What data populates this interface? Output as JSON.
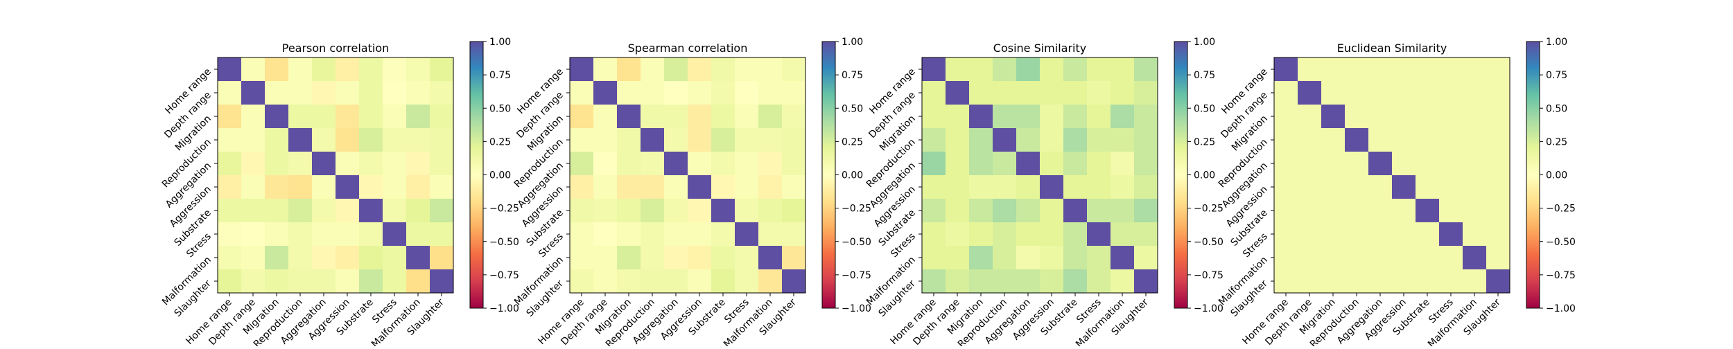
{
  "labels": [
    "Home range",
    "Depth range",
    "Migration",
    "Reproduction",
    "Aggregation",
    "Aggression",
    "Substrate",
    "Stress",
    "Malformation",
    "Slaughter"
  ],
  "colorbar": {
    "ticks": [
      -1.0,
      -0.75,
      -0.5,
      -0.25,
      0.0,
      0.25,
      0.5,
      0.75,
      1.0
    ],
    "tick_labels": [
      "−1.00",
      "−0.75",
      "−0.50",
      "−0.25",
      "0.00",
      "0.25",
      "0.50",
      "0.75",
      "1.00"
    ],
    "colormap": "Spectral",
    "range": [
      -1,
      1
    ]
  },
  "chart_data": [
    {
      "type": "heatmap",
      "title": "Pearson correlation",
      "values": [
        [
          1.0,
          0.05,
          -0.18,
          0.05,
          0.18,
          -0.1,
          0.15,
          0.02,
          0.08,
          0.2
        ],
        [
          0.05,
          1.0,
          0.05,
          0.05,
          -0.05,
          0.05,
          0.15,
          0.0,
          0.05,
          0.1
        ],
        [
          -0.18,
          0.05,
          1.0,
          0.15,
          0.15,
          -0.15,
          0.15,
          0.05,
          0.3,
          0.15
        ],
        [
          0.05,
          0.05,
          0.15,
          1.0,
          0.1,
          -0.18,
          0.25,
          0.1,
          0.1,
          0.12
        ],
        [
          0.18,
          -0.05,
          0.15,
          0.1,
          1.0,
          0.05,
          0.1,
          0.05,
          -0.05,
          0.12
        ],
        [
          -0.1,
          0.05,
          -0.15,
          -0.18,
          0.05,
          1.0,
          -0.05,
          0.05,
          -0.1,
          0.05
        ],
        [
          0.15,
          0.15,
          0.15,
          0.25,
          0.1,
          -0.05,
          1.0,
          0.1,
          0.2,
          0.3
        ],
        [
          0.02,
          0.0,
          0.05,
          0.1,
          0.05,
          0.05,
          0.1,
          1.0,
          0.15,
          0.15
        ],
        [
          0.08,
          0.05,
          0.3,
          0.1,
          -0.05,
          -0.1,
          0.2,
          0.15,
          1.0,
          -0.2
        ],
        [
          0.2,
          0.1,
          0.15,
          0.12,
          0.12,
          0.05,
          0.3,
          0.15,
          -0.2,
          1.0
        ]
      ]
    },
    {
      "type": "heatmap",
      "title": "Spearman correlation",
      "values": [
        [
          1.0,
          0.05,
          -0.18,
          0.05,
          0.25,
          -0.1,
          0.12,
          0.05,
          0.05,
          0.1
        ],
        [
          0.05,
          1.0,
          0.05,
          0.05,
          0.0,
          0.05,
          0.1,
          0.0,
          0.05,
          0.05
        ],
        [
          -0.18,
          0.05,
          1.0,
          0.12,
          0.12,
          -0.12,
          0.15,
          0.05,
          0.25,
          0.1
        ],
        [
          0.05,
          0.05,
          0.12,
          1.0,
          0.1,
          -0.12,
          0.25,
          0.1,
          0.1,
          0.12
        ],
        [
          0.25,
          0.0,
          0.12,
          0.1,
          1.0,
          0.05,
          0.1,
          0.05,
          -0.05,
          0.12
        ],
        [
          -0.1,
          0.05,
          -0.12,
          -0.12,
          0.05,
          1.0,
          -0.05,
          0.05,
          -0.08,
          0.05
        ],
        [
          0.12,
          0.1,
          0.15,
          0.25,
          0.1,
          -0.05,
          1.0,
          0.1,
          0.15,
          0.2
        ],
        [
          0.05,
          0.0,
          0.05,
          0.1,
          0.05,
          0.05,
          0.1,
          1.0,
          0.1,
          0.1
        ],
        [
          0.05,
          0.05,
          0.25,
          0.1,
          -0.05,
          -0.08,
          0.15,
          0.1,
          1.0,
          -0.15
        ],
        [
          0.1,
          0.05,
          0.1,
          0.12,
          0.12,
          0.05,
          0.2,
          0.1,
          -0.15,
          1.0
        ]
      ]
    },
    {
      "type": "heatmap",
      "title": "Cosine Similarity",
      "values": [
        [
          1.0,
          0.2,
          0.2,
          0.3,
          0.45,
          0.2,
          0.3,
          0.2,
          0.2,
          0.35
        ],
        [
          0.2,
          1.0,
          0.2,
          0.2,
          0.2,
          0.2,
          0.2,
          0.15,
          0.2,
          0.25
        ],
        [
          0.2,
          0.2,
          1.0,
          0.35,
          0.35,
          0.15,
          0.3,
          0.2,
          0.4,
          0.3
        ],
        [
          0.3,
          0.2,
          0.35,
          1.0,
          0.3,
          0.15,
          0.4,
          0.25,
          0.25,
          0.3
        ],
        [
          0.45,
          0.2,
          0.35,
          0.3,
          1.0,
          0.2,
          0.3,
          0.2,
          0.1,
          0.3
        ],
        [
          0.2,
          0.2,
          0.15,
          0.15,
          0.2,
          1.0,
          0.2,
          0.2,
          0.15,
          0.25
        ],
        [
          0.3,
          0.2,
          0.3,
          0.4,
          0.3,
          0.2,
          1.0,
          0.3,
          0.3,
          0.4
        ],
        [
          0.2,
          0.15,
          0.2,
          0.25,
          0.2,
          0.2,
          0.3,
          1.0,
          0.25,
          0.25
        ],
        [
          0.2,
          0.2,
          0.4,
          0.25,
          0.1,
          0.15,
          0.3,
          0.25,
          1.0,
          0.15
        ],
        [
          0.35,
          0.25,
          0.3,
          0.3,
          0.3,
          0.25,
          0.4,
          0.25,
          0.15,
          1.0
        ]
      ]
    },
    {
      "type": "heatmap",
      "title": "Euclidean Similarity",
      "values": [
        [
          1.0,
          0.1,
          0.1,
          0.1,
          0.1,
          0.1,
          0.1,
          0.1,
          0.1,
          0.1
        ],
        [
          0.1,
          1.0,
          0.1,
          0.1,
          0.1,
          0.1,
          0.1,
          0.1,
          0.1,
          0.1
        ],
        [
          0.1,
          0.1,
          1.0,
          0.1,
          0.1,
          0.1,
          0.1,
          0.1,
          0.1,
          0.1
        ],
        [
          0.1,
          0.1,
          0.1,
          1.0,
          0.1,
          0.1,
          0.1,
          0.1,
          0.1,
          0.1
        ],
        [
          0.1,
          0.1,
          0.1,
          0.1,
          1.0,
          0.1,
          0.1,
          0.1,
          0.1,
          0.1
        ],
        [
          0.1,
          0.1,
          0.1,
          0.1,
          0.1,
          1.0,
          0.1,
          0.1,
          0.1,
          0.1
        ],
        [
          0.1,
          0.1,
          0.1,
          0.1,
          0.1,
          0.1,
          1.0,
          0.1,
          0.1,
          0.1
        ],
        [
          0.1,
          0.1,
          0.1,
          0.1,
          0.1,
          0.1,
          0.1,
          1.0,
          0.1,
          0.1
        ],
        [
          0.1,
          0.1,
          0.1,
          0.1,
          0.1,
          0.1,
          0.1,
          0.1,
          1.0,
          0.1
        ],
        [
          0.1,
          0.1,
          0.1,
          0.1,
          0.1,
          0.1,
          0.1,
          0.1,
          0.1,
          1.0
        ]
      ]
    }
  ]
}
